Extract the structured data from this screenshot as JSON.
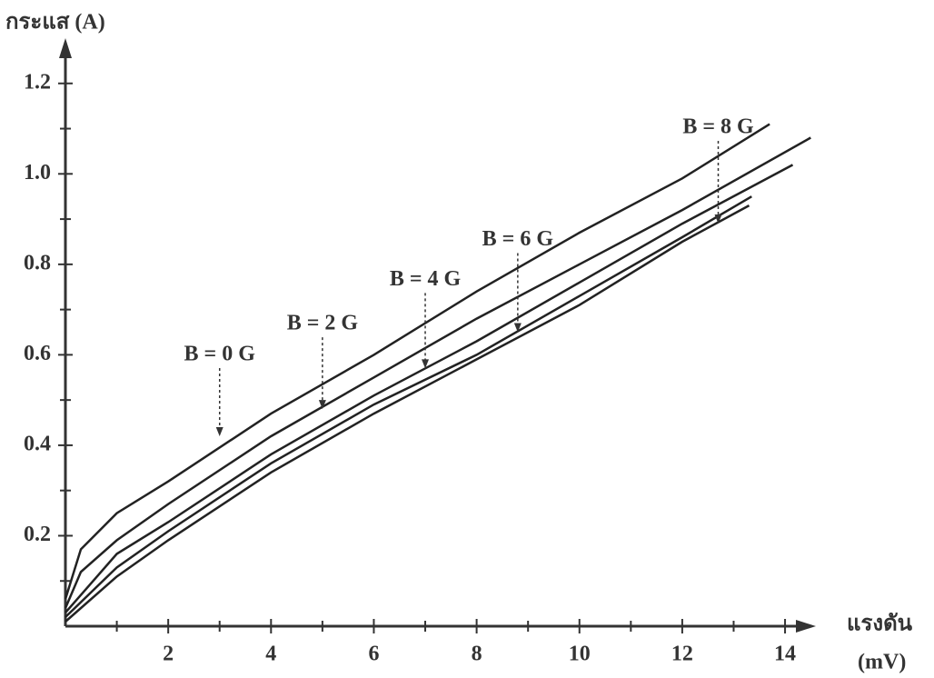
{
  "chart_data": {
    "type": "line",
    "y_label": "กระแส (A)",
    "x_label": "แรงดัน",
    "x_unit": "(mV)",
    "xlim": [
      0,
      14.6
    ],
    "ylim": [
      0,
      1.3
    ],
    "xticks": [
      2,
      4,
      6,
      8,
      10,
      12,
      14
    ],
    "xminorticks": [
      1,
      3,
      5,
      7,
      9,
      11,
      13
    ],
    "yticks": [
      0.2,
      0.4,
      0.6,
      0.8,
      {
        "value": 1,
        "label": "1.0"
      },
      1.2
    ],
    "yminorticks": [
      0.1,
      0.3,
      0.5,
      0.7,
      0.9,
      1.1
    ],
    "color": "#222222",
    "series": [
      {
        "name": "B = 0 G",
        "x": [
          0,
          0.3,
          1,
          2,
          4,
          6,
          8,
          10,
          12,
          13.7
        ],
        "values": [
          0.06,
          0.17,
          0.25,
          0.32,
          0.47,
          0.6,
          0.74,
          0.87,
          0.99,
          1.11
        ],
        "arrow": [
          3,
          0.42
        ]
      },
      {
        "name": "B = 2 G",
        "x": [
          0,
          0.3,
          1,
          2,
          4,
          6,
          8,
          10,
          12,
          14.5
        ],
        "values": [
          0.04,
          0.12,
          0.19,
          0.27,
          0.42,
          0.55,
          0.68,
          0.8,
          0.92,
          1.08
        ],
        "arrow": [
          5,
          0.48
        ]
      },
      {
        "name": "B = 4 G",
        "x": [
          0,
          1,
          2,
          4,
          6,
          8,
          10,
          12,
          14.15
        ],
        "values": [
          0.03,
          0.16,
          0.23,
          0.38,
          0.51,
          0.63,
          0.76,
          0.89,
          1.02
        ],
        "arrow": [
          7,
          0.57
        ]
      },
      {
        "name": "B = 6 G",
        "x": [
          0,
          1,
          2,
          4,
          6,
          8,
          10,
          12,
          13.35
        ],
        "values": [
          0.02,
          0.13,
          0.21,
          0.36,
          0.49,
          0.6,
          0.73,
          0.86,
          0.95
        ],
        "arrow": [
          8.8,
          0.65
        ]
      },
      {
        "name": "B = 8 G",
        "x": [
          0,
          1,
          2,
          4,
          6,
          8,
          10,
          12,
          13.3
        ],
        "values": [
          0.01,
          0.11,
          0.19,
          0.34,
          0.47,
          0.59,
          0.71,
          0.85,
          0.93
        ],
        "arrow": [
          12.7,
          0.89
        ]
      }
    ]
  }
}
